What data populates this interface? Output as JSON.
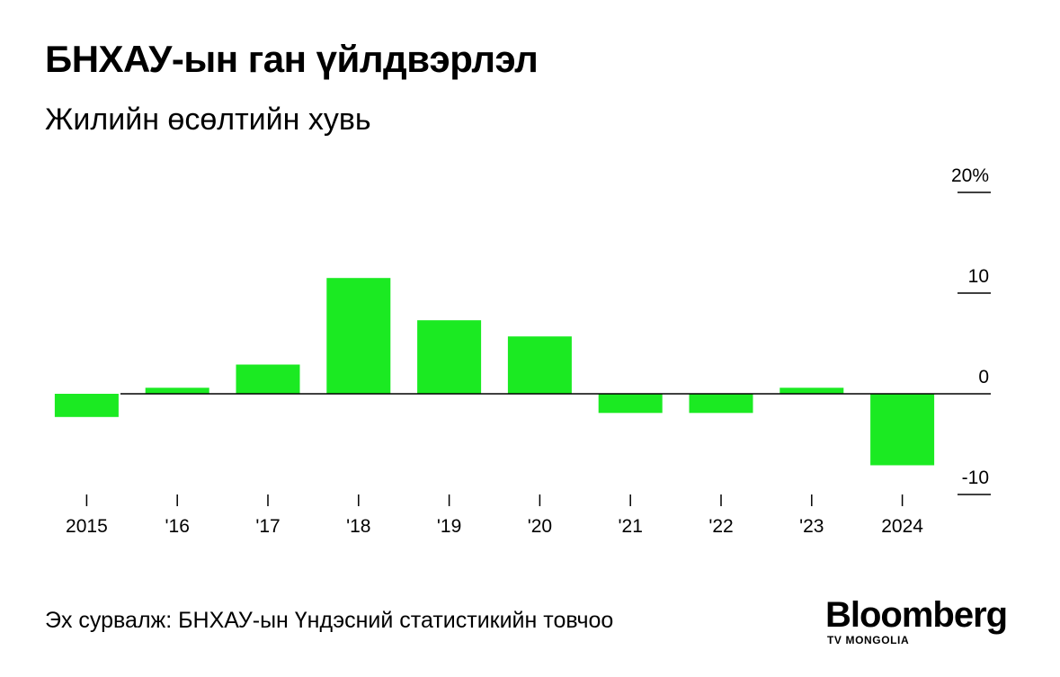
{
  "header": {
    "title": "БНХАУ-ын ган үйлдвэрлэл",
    "subtitle": "Жилийн өсөлтийн хувь"
  },
  "footer": {
    "source": "Эх сурвалж: БНХАУ-ын Үндэсний статистикийн товчоо",
    "logo_main": "Bloomberg",
    "logo_sub": "TV MONGOLIA"
  },
  "colors": {
    "bar": "#1bea22",
    "axis": "#000000",
    "text": "#000000"
  },
  "chart_data": {
    "type": "bar",
    "title": "БНХАУ-ын ган үйлдвэрлэл",
    "subtitle": "Жилийн өсөлтийн хувь",
    "categories": [
      "2015",
      "'16",
      "'17",
      "'18",
      "'19",
      "'20",
      "'21",
      "'22",
      "'23",
      "2024"
    ],
    "values": [
      -2.3,
      0.6,
      2.9,
      11.5,
      7.3,
      5.7,
      -1.9,
      -1.9,
      0.6,
      -7.1
    ],
    "ylim": [
      -10,
      20
    ],
    "yticks": [
      -10,
      0,
      10,
      20
    ],
    "ytick_labels": [
      "-10",
      "0",
      "10",
      "20%"
    ],
    "y_axis_side": "right",
    "grid": false
  }
}
